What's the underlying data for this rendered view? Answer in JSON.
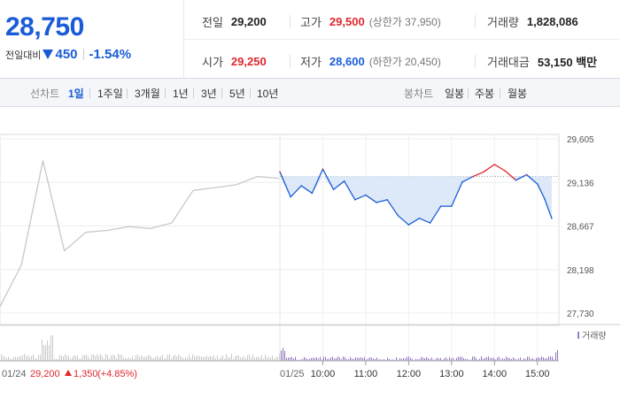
{
  "summary": {
    "price": "28,750",
    "change_label": "전일대비",
    "change_value": "450",
    "change_pct": "-1.54%",
    "stats": {
      "prev_close": {
        "label": "전일",
        "value": "29,200"
      },
      "high": {
        "label": "고가",
        "value": "29,500",
        "sub": "(상한가 37,950)"
      },
      "volume": {
        "label": "거래량",
        "value": "1,828,086"
      },
      "open": {
        "label": "시가",
        "value": "29,250"
      },
      "low": {
        "label": "저가",
        "value": "28,600",
        "sub": "(하한가 20,450)"
      },
      "amount": {
        "label": "거래대금",
        "value": "53,150 백만"
      }
    }
  },
  "period_bar": {
    "line_label": "선차트",
    "periods": [
      "1일",
      "1주일",
      "3개월",
      "1년",
      "3년",
      "5년",
      "10년"
    ],
    "active_period": "1일",
    "candle_label": "봉차트",
    "candle_periods": [
      "일봉",
      "주봉",
      "월봉"
    ]
  },
  "colors": {
    "up": "#e0262c",
    "down": "#1a5cd7",
    "prev_day": "#c8c8c8",
    "fill": "#dde9f8"
  },
  "chart_data": {
    "type": "line",
    "y_ticks": [
      "29,605",
      "29,136",
      "28,667",
      "28,198",
      "27,730"
    ],
    "ylim": [
      27730,
      29605
    ],
    "reference_price": 29200,
    "prev_day_label": "01/24",
    "prev_day_close": "29,200",
    "prev_day_change": "1,350",
    "prev_day_pct": "(+4.85%)",
    "date_label": "01/25",
    "x_ticks": [
      "10:00",
      "11:00",
      "12:00",
      "13:00",
      "14:00",
      "15:00"
    ],
    "volume_legend": "거래량",
    "prev_day_series": {
      "x": [
        "09:00",
        "09:30",
        "10:00",
        "10:30",
        "11:00",
        "11:30",
        "12:00",
        "12:30",
        "13:00",
        "13:30",
        "14:00",
        "14:30",
        "15:00",
        "15:30"
      ],
      "values": [
        27800,
        28250,
        29370,
        28400,
        28600,
        28620,
        28660,
        28640,
        28700,
        29050,
        29080,
        29110,
        29200,
        29180
      ]
    },
    "today_series": {
      "x": [
        "09:00",
        "09:15",
        "09:30",
        "09:45",
        "10:00",
        "10:15",
        "10:30",
        "10:45",
        "11:00",
        "11:15",
        "11:30",
        "11:45",
        "12:00",
        "12:15",
        "12:30",
        "12:45",
        "13:00",
        "13:15",
        "13:30",
        "13:45",
        "14:00",
        "14:15",
        "14:30",
        "14:45",
        "15:00",
        "15:10",
        "15:20"
      ],
      "values": [
        29250,
        28980,
        29100,
        29020,
        29280,
        29060,
        29150,
        28950,
        29000,
        28920,
        28950,
        28780,
        28680,
        28750,
        28700,
        28880,
        28880,
        29140,
        29200,
        29250,
        29330,
        29260,
        29160,
        29220,
        29120,
        28960,
        28750
      ]
    }
  }
}
